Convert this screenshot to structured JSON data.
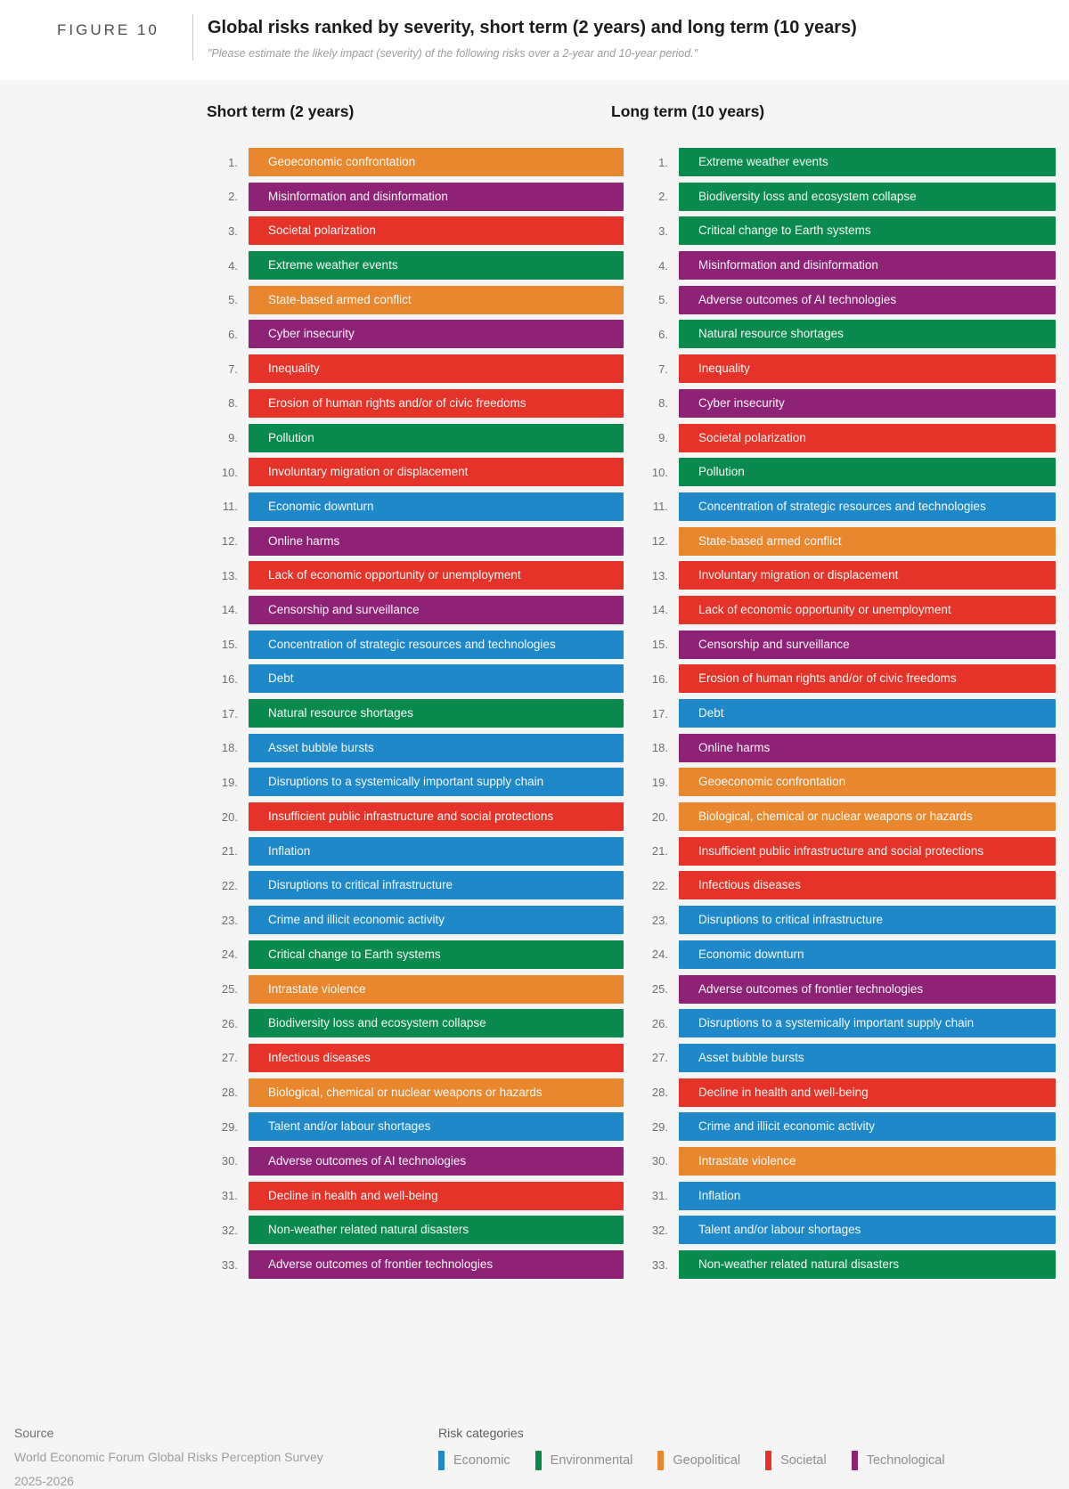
{
  "figure": {
    "label": "FIGURE 10",
    "title": "Global risks ranked by severity, short term (2 years) and long term (10 years)",
    "subtitle": "\"Please estimate the likely impact (severity) of the following risks over a 2-year and 10-year period.\""
  },
  "category_colors": {
    "economic": "#1e88c8",
    "environmental": "#0a8a4d",
    "geopolitical": "#e8872e",
    "societal": "#e63329",
    "technological": "#8e2274"
  },
  "chart_data": {
    "type": "table",
    "title": "Global risks ranked by severity, short term (2 years) and long term (10 years)",
    "subtitle": "\"Please estimate the likely impact (severity) of the following risks over a 2-year and 10-year period.\"",
    "legend_position": "bottom",
    "categories_legend": [
      "Economic",
      "Environmental",
      "Geopolitical",
      "Societal",
      "Technological"
    ],
    "columns": [
      {
        "id": "short_term",
        "header": "Short term (2 years)",
        "items": [
          {
            "rank": "1.",
            "label": "Geoeconomic confrontation",
            "category": "geopolitical"
          },
          {
            "rank": "2.",
            "label": "Misinformation and disinformation",
            "category": "technological"
          },
          {
            "rank": "3.",
            "label": "Societal polarization",
            "category": "societal"
          },
          {
            "rank": "4.",
            "label": "Extreme weather events",
            "category": "environmental"
          },
          {
            "rank": "5.",
            "label": "State-based armed conflict",
            "category": "geopolitical"
          },
          {
            "rank": "6.",
            "label": "Cyber insecurity",
            "category": "technological"
          },
          {
            "rank": "7.",
            "label": "Inequality",
            "category": "societal"
          },
          {
            "rank": "8.",
            "label": "Erosion of human rights and/or of civic freedoms",
            "category": "societal"
          },
          {
            "rank": "9.",
            "label": "Pollution",
            "category": "environmental"
          },
          {
            "rank": "10.",
            "label": "Involuntary migration or displacement",
            "category": "societal"
          },
          {
            "rank": "11.",
            "label": "Economic downturn",
            "category": "economic"
          },
          {
            "rank": "12.",
            "label": "Online harms",
            "category": "technological"
          },
          {
            "rank": "13.",
            "label": "Lack of economic opportunity or unemployment",
            "category": "societal"
          },
          {
            "rank": "14.",
            "label": "Censorship and surveillance",
            "category": "technological"
          },
          {
            "rank": "15.",
            "label": "Concentration of strategic resources and technologies",
            "category": "economic"
          },
          {
            "rank": "16.",
            "label": "Debt",
            "category": "economic"
          },
          {
            "rank": "17.",
            "label": "Natural resource shortages",
            "category": "environmental"
          },
          {
            "rank": "18.",
            "label": "Asset bubble bursts",
            "category": "economic"
          },
          {
            "rank": "19.",
            "label": "Disruptions to a systemically important supply chain",
            "category": "economic"
          },
          {
            "rank": "20.",
            "label": "Insufficient public infrastructure and social protections",
            "category": "societal"
          },
          {
            "rank": "21.",
            "label": "Inflation",
            "category": "economic"
          },
          {
            "rank": "22.",
            "label": "Disruptions to critical infrastructure",
            "category": "economic"
          },
          {
            "rank": "23.",
            "label": "Crime and illicit economic activity",
            "category": "economic"
          },
          {
            "rank": "24.",
            "label": "Critical change to Earth systems",
            "category": "environmental"
          },
          {
            "rank": "25.",
            "label": "Intrastate violence",
            "category": "geopolitical"
          },
          {
            "rank": "26.",
            "label": "Biodiversity loss and ecosystem collapse",
            "category": "environmental"
          },
          {
            "rank": "27.",
            "label": "Infectious diseases",
            "category": "societal"
          },
          {
            "rank": "28.",
            "label": "Biological, chemical or nuclear weapons or hazards",
            "category": "geopolitical"
          },
          {
            "rank": "29.",
            "label": "Talent and/or labour shortages",
            "category": "economic"
          },
          {
            "rank": "30.",
            "label": "Adverse outcomes of AI technologies",
            "category": "technological"
          },
          {
            "rank": "31.",
            "label": "Decline in health and well-being",
            "category": "societal"
          },
          {
            "rank": "32.",
            "label": "Non-weather related natural disasters",
            "category": "environmental"
          },
          {
            "rank": "33.",
            "label": "Adverse outcomes of frontier technologies",
            "category": "technological"
          }
        ]
      },
      {
        "id": "long_term",
        "header": "Long term (10 years)",
        "items": [
          {
            "rank": "1.",
            "label": "Extreme weather events",
            "category": "environmental"
          },
          {
            "rank": "2.",
            "label": "Biodiversity loss and ecosystem collapse",
            "category": "environmental"
          },
          {
            "rank": "3.",
            "label": "Critical change to Earth systems",
            "category": "environmental"
          },
          {
            "rank": "4.",
            "label": "Misinformation and disinformation",
            "category": "technological"
          },
          {
            "rank": "5.",
            "label": "Adverse outcomes of AI technologies",
            "category": "technological"
          },
          {
            "rank": "6.",
            "label": "Natural resource shortages",
            "category": "environmental"
          },
          {
            "rank": "7.",
            "label": "Inequality",
            "category": "societal"
          },
          {
            "rank": "8.",
            "label": "Cyber insecurity",
            "category": "technological"
          },
          {
            "rank": "9.",
            "label": "Societal polarization",
            "category": "societal"
          },
          {
            "rank": "10.",
            "label": "Pollution",
            "category": "environmental"
          },
          {
            "rank": "11.",
            "label": "Concentration of strategic resources and technologies",
            "category": "economic"
          },
          {
            "rank": "12.",
            "label": "State-based armed conflict",
            "category": "geopolitical"
          },
          {
            "rank": "13.",
            "label": "Involuntary migration or displacement",
            "category": "societal"
          },
          {
            "rank": "14.",
            "label": "Lack of economic opportunity or unemployment",
            "category": "societal"
          },
          {
            "rank": "15.",
            "label": "Censorship and surveillance",
            "category": "technological"
          },
          {
            "rank": "16.",
            "label": "Erosion of human rights and/or of civic freedoms",
            "category": "societal"
          },
          {
            "rank": "17.",
            "label": "Debt",
            "category": "economic"
          },
          {
            "rank": "18.",
            "label": "Online harms",
            "category": "technological"
          },
          {
            "rank": "19.",
            "label": "Geoeconomic confrontation",
            "category": "geopolitical"
          },
          {
            "rank": "20.",
            "label": "Biological, chemical or nuclear weapons or hazards",
            "category": "geopolitical"
          },
          {
            "rank": "21.",
            "label": "Insufficient public infrastructure and social protections",
            "category": "societal"
          },
          {
            "rank": "22.",
            "label": "Infectious diseases",
            "category": "societal"
          },
          {
            "rank": "23.",
            "label": "Disruptions to critical infrastructure",
            "category": "economic"
          },
          {
            "rank": "24.",
            "label": "Economic downturn",
            "category": "economic"
          },
          {
            "rank": "25.",
            "label": "Adverse outcomes of frontier technologies",
            "category": "technological"
          },
          {
            "rank": "26.",
            "label": "Disruptions to a systemically important supply chain",
            "category": "economic"
          },
          {
            "rank": "27.",
            "label": "Asset bubble bursts",
            "category": "economic"
          },
          {
            "rank": "28.",
            "label": "Decline in health and well-being",
            "category": "societal"
          },
          {
            "rank": "29.",
            "label": "Crime and illicit economic activity",
            "category": "economic"
          },
          {
            "rank": "30.",
            "label": "Intrastate violence",
            "category": "geopolitical"
          },
          {
            "rank": "31.",
            "label": "Inflation",
            "category": "economic"
          },
          {
            "rank": "32.",
            "label": "Talent and/or labour shortages",
            "category": "economic"
          },
          {
            "rank": "33.",
            "label": "Non-weather related natural disasters",
            "category": "environmental"
          }
        ]
      }
    ]
  },
  "footer": {
    "source_label": "Source",
    "source_line1": "World Economic Forum Global Risks Perception Survey",
    "source_line2": "2025-2026",
    "legend_title": "Risk categories",
    "legend": [
      {
        "label": "Economic",
        "color": "#1e88c8"
      },
      {
        "label": "Environmental",
        "color": "#0a8a4d"
      },
      {
        "label": "Geopolitical",
        "color": "#e8872e"
      },
      {
        "label": "Societal",
        "color": "#e63329"
      },
      {
        "label": "Technological",
        "color": "#8e2274"
      }
    ]
  }
}
